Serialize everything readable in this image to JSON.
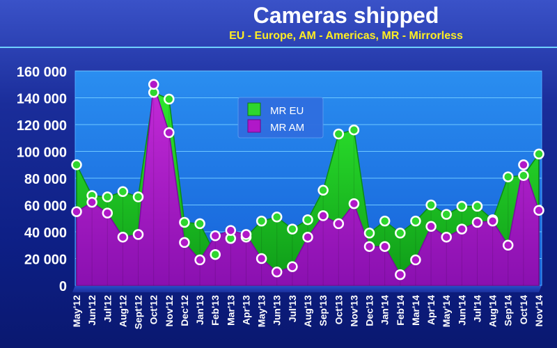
{
  "chart_data": {
    "type": "area",
    "title": "Cameras shipped",
    "subtitle": "EU - Europe, AM - Americas, MR - Mirrorless",
    "xlabel": "",
    "ylabel": "",
    "ylim": [
      0,
      160000
    ],
    "yticks": [
      0,
      20000,
      40000,
      60000,
      80000,
      100000,
      120000,
      140000,
      160000
    ],
    "ytick_labels": [
      "0",
      "20 000",
      "40 000",
      "60 000",
      "80 000",
      "100 000",
      "120 000",
      "140 000",
      "160 000"
    ],
    "grid": true,
    "legend_position": "top-center",
    "categories": [
      "May'12",
      "Jun'12",
      "Jul'12",
      "Aug'12",
      "Sept'12",
      "Oct'12",
      "Nov'12",
      "Dec'12",
      "Jan'13",
      "Feb'13",
      "Mar'13",
      "Apr'13",
      "May'13",
      "Jun'13",
      "Jul'13",
      "Aug'13",
      "Sep'13",
      "Oct'13",
      "Nov'13",
      "Dec'13",
      "Jan'14",
      "Feb'14",
      "Mar'14",
      "Apr'14",
      "May'14",
      "Jun'14",
      "Jul'14",
      "Aug'14",
      "Sep'14",
      "Oct'14",
      "Nov'14"
    ],
    "series": [
      {
        "name": "MR EU",
        "color": "#2ed62e",
        "values": [
          90000,
          67000,
          66000,
          70000,
          66000,
          144000,
          139000,
          47000,
          46000,
          23000,
          35000,
          36000,
          48000,
          51000,
          42000,
          49000,
          71000,
          113000,
          116000,
          39000,
          48000,
          39000,
          48000,
          60000,
          53000,
          59000,
          59000,
          49000,
          81000,
          82000,
          98000
        ]
      },
      {
        "name": "MR AM",
        "color": "#b018c8",
        "values": [
          55000,
          62000,
          54000,
          36000,
          38000,
          150000,
          114000,
          32000,
          19000,
          37000,
          41000,
          38000,
          20000,
          10000,
          14000,
          36000,
          52000,
          46000,
          61000,
          29000,
          29000,
          8000,
          19000,
          44000,
          36000,
          42000,
          47000,
          48000,
          30000,
          90000,
          56000
        ]
      }
    ]
  }
}
